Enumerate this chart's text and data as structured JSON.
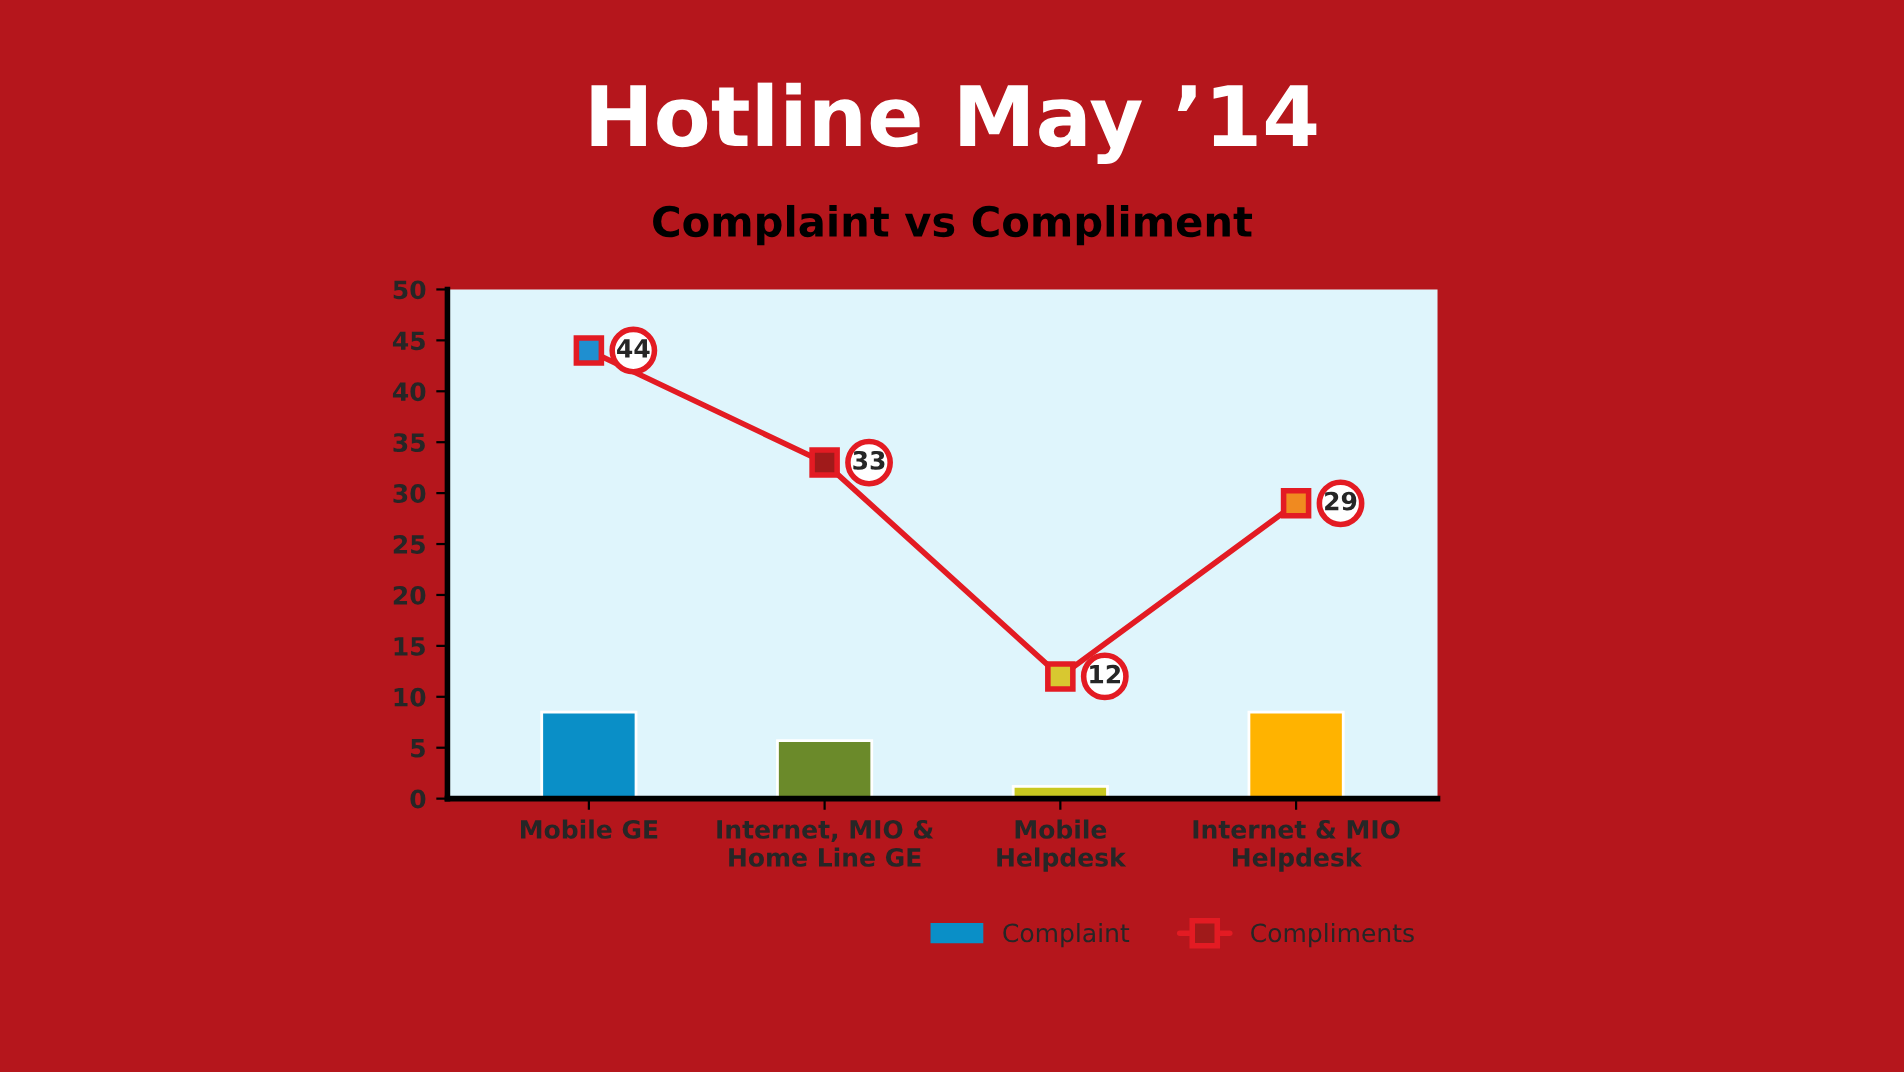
{
  "chart_data": {
    "type": "bar",
    "title": "Hotline May ’14",
    "subtitle": "Complaint vs Compliment",
    "categories": [
      "Mobile GE",
      "Internet, MIO &\nHome Line GE",
      "Mobile\nHelpdesk",
      "Internet & MIO\nHelpdesk"
    ],
    "series": [
      {
        "name": "Complaint",
        "color": "#0a8fc7",
        "colors": [
          "#0a8fc7",
          "#6b8a2a",
          "#c8c820",
          "#ffb300"
        ],
        "values": [
          8.5,
          5.7,
          1.2,
          8.5
        ]
      },
      {
        "name": "Compliments",
        "type": "line",
        "color": "#e31b23",
        "colors": [
          "#1f8fd0",
          "#a01a1a",
          "#d8c830",
          "#f08a20"
        ],
        "marker": "square",
        "values": [
          44,
          33,
          12,
          29
        ],
        "value_labels": [
          "44",
          "33",
          "12",
          "29"
        ]
      }
    ],
    "ylim": [
      0,
      50
    ],
    "yticks": [
      0,
      5,
      10,
      15,
      20,
      25,
      30,
      35,
      40,
      45,
      50
    ],
    "grid": false,
    "legend": "bottom right"
  }
}
